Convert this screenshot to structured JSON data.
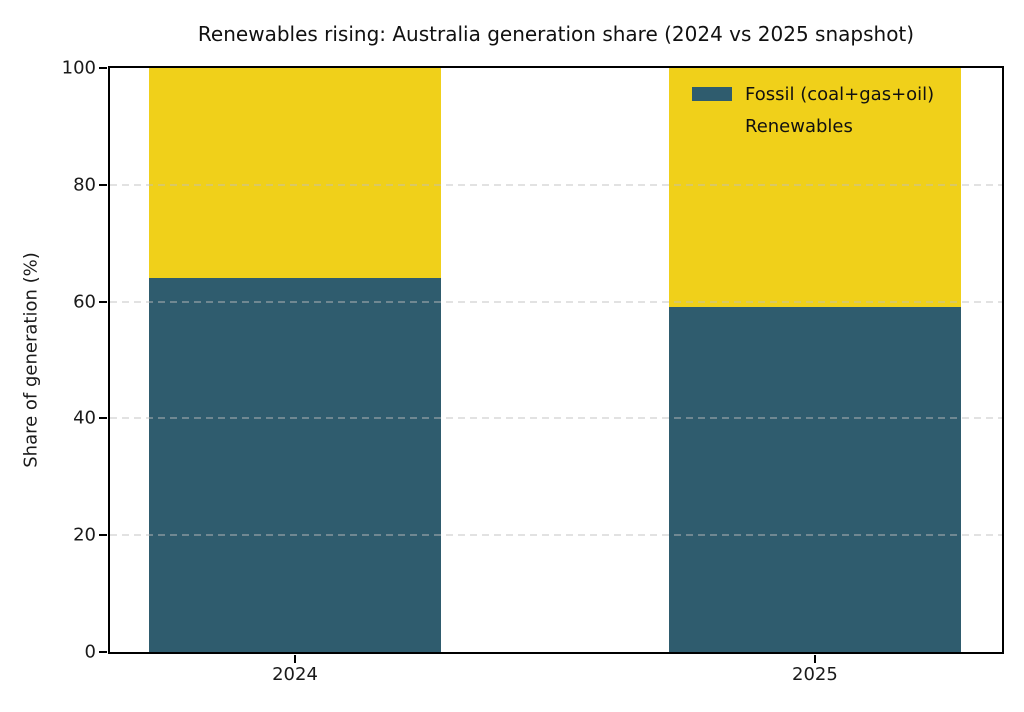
{
  "figure": {
    "background_color": "#ffffff",
    "spine_color": "#000000",
    "text_color": "#111111"
  },
  "chart_data": {
    "type": "bar",
    "stacked": true,
    "title": "Renewables rising: Australia generation share (2024 vs 2025 snapshot)",
    "xlabel": "",
    "ylabel": "Share of generation (%)",
    "categories": [
      "2024",
      "2025"
    ],
    "series": [
      {
        "name": "Fossil (coal+gas+oil)",
        "color": "#2f5c6e",
        "values": [
          64,
          59
        ]
      },
      {
        "name": "Renewables",
        "color": "#f0d01a",
        "values": [
          36,
          41
        ]
      }
    ],
    "ylim": [
      0,
      100
    ],
    "yticks": [
      0,
      20,
      40,
      60,
      80,
      100
    ],
    "grid": {
      "axis": "y",
      "style": "dashed",
      "above_bars": true,
      "color": "#d9d9d9"
    },
    "legend": {
      "position": "upper-right",
      "frame": false,
      "entries": [
        "Fossil (coal+gas+oil)",
        "Renewables"
      ]
    },
    "layout": {
      "bar_centers_frac": [
        0.2074,
        0.7903
      ],
      "bar_width_frac": 0.3274
    }
  }
}
